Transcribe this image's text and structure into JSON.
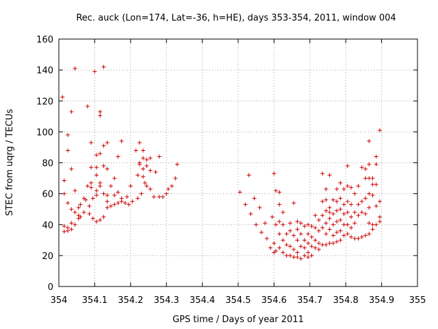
{
  "chart_data": {
    "type": "scatter",
    "title": "Rec. auck (Lon=174, Lat=-36, h=HE), days 353-354, 2011, window 004",
    "xlabel": "GPS time / Days of year 2011",
    "ylabel": "STEC from uqrg / TECUs",
    "xlim": [
      354,
      355
    ],
    "ylim": [
      0,
      160
    ],
    "xticks": [
      354,
      354.1,
      354.2,
      354.3,
      354.4,
      354.5,
      354.6,
      354.7,
      354.8,
      354.9,
      355
    ],
    "xtick_labels": [
      "354",
      "354.1",
      "354.2",
      "354.3",
      "354.4",
      "354.5",
      "354.6",
      "354.7",
      "354.8",
      "354.9",
      "355"
    ],
    "yticks": [
      0,
      20,
      40,
      60,
      80,
      100,
      120,
      140,
      160
    ],
    "ytick_labels": [
      "0",
      "20",
      "40",
      "60",
      "80",
      "100",
      "120",
      "140",
      "160"
    ],
    "grid": true,
    "marker": "plus",
    "color": "#cc0000",
    "points": [
      [
        354.01,
        122.5
      ],
      [
        354.015,
        68.5
      ],
      [
        354.015,
        60
      ],
      [
        354.015,
        39
      ],
      [
        354.015,
        35.5
      ],
      [
        354.025,
        98
      ],
      [
        354.025,
        88
      ],
      [
        354.025,
        54
      ],
      [
        354.025,
        38
      ],
      [
        354.025,
        36
      ],
      [
        354.035,
        113
      ],
      [
        354.035,
        76
      ],
      [
        354.035,
        50
      ],
      [
        354.035,
        41
      ],
      [
        354.035,
        37
      ],
      [
        354.045,
        141
      ],
      [
        354.045,
        62
      ],
      [
        354.045,
        48
      ],
      [
        354.045,
        40
      ],
      [
        354.055,
        51
      ],
      [
        354.055,
        46
      ],
      [
        354.055,
        44
      ],
      [
        354.06,
        53
      ],
      [
        354.06,
        45
      ],
      [
        354.07,
        57
      ],
      [
        354.07,
        48
      ],
      [
        354.075,
        56
      ],
      [
        354.08,
        116.5
      ],
      [
        354.08,
        65
      ],
      [
        354.085,
        52
      ],
      [
        354.085,
        47
      ],
      [
        354.09,
        93
      ],
      [
        354.09,
        77
      ],
      [
        354.09,
        67
      ],
      [
        354.09,
        64
      ],
      [
        354.095,
        44
      ],
      [
        354.095,
        57
      ],
      [
        354.1,
        139
      ],
      [
        354.105,
        85
      ],
      [
        354.105,
        77
      ],
      [
        354.105,
        72
      ],
      [
        354.105,
        62
      ],
      [
        354.105,
        59
      ],
      [
        354.105,
        42
      ],
      [
        354.115,
        113
      ],
      [
        354.115,
        110.5
      ],
      [
        354.115,
        86
      ],
      [
        354.115,
        67
      ],
      [
        354.115,
        65
      ],
      [
        354.115,
        43
      ],
      [
        354.125,
        142
      ],
      [
        354.125,
        91
      ],
      [
        354.125,
        78
      ],
      [
        354.125,
        60
      ],
      [
        354.125,
        45
      ],
      [
        354.135,
        93
      ],
      [
        354.135,
        76
      ],
      [
        354.135,
        59
      ],
      [
        354.135,
        55
      ],
      [
        354.135,
        51
      ],
      [
        354.145,
        65
      ],
      [
        354.145,
        52
      ],
      [
        354.155,
        70
      ],
      [
        354.155,
        59
      ],
      [
        354.155,
        53
      ],
      [
        354.165,
        84
      ],
      [
        354.165,
        61
      ],
      [
        354.165,
        54
      ],
      [
        354.175,
        94
      ],
      [
        354.175,
        57
      ],
      [
        354.175,
        55
      ],
      [
        354.185,
        54
      ],
      [
        354.19,
        58
      ],
      [
        354.195,
        53
      ],
      [
        354.2,
        65
      ],
      [
        354.205,
        55
      ],
      [
        354.215,
        88
      ],
      [
        354.22,
        72
      ],
      [
        354.22,
        57
      ],
      [
        354.225,
        93
      ],
      [
        354.225,
        80
      ],
      [
        354.225,
        79
      ],
      [
        354.23,
        60
      ],
      [
        354.235,
        88
      ],
      [
        354.235,
        83
      ],
      [
        354.235,
        76
      ],
      [
        354.235,
        71
      ],
      [
        354.24,
        67
      ],
      [
        354.245,
        82
      ],
      [
        354.245,
        78
      ],
      [
        354.245,
        65
      ],
      [
        354.255,
        83
      ],
      [
        354.255,
        75
      ],
      [
        354.255,
        63
      ],
      [
        354.265,
        58
      ],
      [
        354.27,
        74
      ],
      [
        354.28,
        84
      ],
      [
        354.28,
        58
      ],
      [
        354.29,
        58
      ],
      [
        354.3,
        60
      ],
      [
        354.305,
        63
      ],
      [
        354.315,
        65
      ],
      [
        354.325,
        70
      ],
      [
        354.33,
        79
      ],
      [
        354.505,
        61
      ],
      [
        354.52,
        53
      ],
      [
        354.53,
        72
      ],
      [
        354.535,
        47
      ],
      [
        354.545,
        57
      ],
      [
        354.55,
        40
      ],
      [
        354.56,
        51
      ],
      [
        354.565,
        35
      ],
      [
        354.575,
        41
      ],
      [
        354.58,
        31
      ],
      [
        354.59,
        25
      ],
      [
        354.595,
        45
      ],
      [
        354.6,
        73
      ],
      [
        354.6,
        28
      ],
      [
        354.6,
        22
      ],
      [
        354.605,
        62
      ],
      [
        354.605,
        40
      ],
      [
        354.605,
        23
      ],
      [
        354.615,
        61
      ],
      [
        354.615,
        53
      ],
      [
        354.615,
        42
      ],
      [
        354.615,
        34
      ],
      [
        354.615,
        25
      ],
      [
        354.625,
        48
      ],
      [
        354.625,
        40
      ],
      [
        354.625,
        30
      ],
      [
        354.625,
        22
      ],
      [
        354.635,
        34
      ],
      [
        354.635,
        27
      ],
      [
        354.635,
        20
      ],
      [
        354.645,
        41
      ],
      [
        354.645,
        36
      ],
      [
        354.645,
        26
      ],
      [
        354.645,
        20
      ],
      [
        354.655,
        54
      ],
      [
        354.655,
        33
      ],
      [
        354.655,
        24
      ],
      [
        354.655,
        19
      ],
      [
        354.665,
        42
      ],
      [
        354.665,
        37
      ],
      [
        354.665,
        30
      ],
      [
        354.665,
        22
      ],
      [
        354.665,
        19
      ],
      [
        354.675,
        41
      ],
      [
        354.675,
        34
      ],
      [
        354.675,
        26
      ],
      [
        354.675,
        18
      ],
      [
        354.685,
        39
      ],
      [
        354.685,
        30
      ],
      [
        354.685,
        25
      ],
      [
        354.685,
        20
      ],
      [
        354.695,
        40
      ],
      [
        354.695,
        34
      ],
      [
        354.695,
        28
      ],
      [
        354.695,
        22
      ],
      [
        354.695,
        19
      ],
      [
        354.705,
        39
      ],
      [
        354.705,
        32
      ],
      [
        354.705,
        26
      ],
      [
        354.705,
        20
      ],
      [
        354.715,
        46
      ],
      [
        354.715,
        38
      ],
      [
        354.715,
        30
      ],
      [
        354.715,
        25
      ],
      [
        354.725,
        43
      ],
      [
        354.725,
        36
      ],
      [
        354.725,
        28
      ],
      [
        354.725,
        24
      ],
      [
        354.735,
        73
      ],
      [
        354.735,
        55
      ],
      [
        354.735,
        46
      ],
      [
        354.735,
        38
      ],
      [
        354.735,
        27
      ],
      [
        354.745,
        63
      ],
      [
        354.745,
        56
      ],
      [
        354.745,
        49
      ],
      [
        354.745,
        41
      ],
      [
        354.745,
        34
      ],
      [
        354.745,
        27
      ],
      [
        354.755,
        72
      ],
      [
        354.755,
        51
      ],
      [
        354.755,
        48
      ],
      [
        354.755,
        44
      ],
      [
        354.755,
        37
      ],
      [
        354.755,
        28
      ],
      [
        354.765,
        56
      ],
      [
        354.765,
        47
      ],
      [
        354.765,
        40
      ],
      [
        354.765,
        33
      ],
      [
        354.765,
        28
      ],
      [
        354.775,
        63
      ],
      [
        354.775,
        55
      ],
      [
        354.775,
        49
      ],
      [
        354.775,
        42
      ],
      [
        354.775,
        35
      ],
      [
        354.775,
        29
      ],
      [
        354.785,
        67
      ],
      [
        354.785,
        57
      ],
      [
        354.785,
        50
      ],
      [
        354.785,
        43
      ],
      [
        354.785,
        36
      ],
      [
        354.785,
        30
      ],
      [
        354.795,
        63
      ],
      [
        354.795,
        53
      ],
      [
        354.795,
        47
      ],
      [
        354.795,
        40
      ],
      [
        354.795,
        33
      ],
      [
        354.805,
        78
      ],
      [
        354.805,
        65
      ],
      [
        354.805,
        55
      ],
      [
        354.805,
        48
      ],
      [
        354.805,
        40
      ],
      [
        354.805,
        34
      ],
      [
        354.815,
        64
      ],
      [
        354.815,
        53
      ],
      [
        354.815,
        45
      ],
      [
        354.815,
        38
      ],
      [
        354.815,
        32
      ],
      [
        354.825,
        60
      ],
      [
        354.825,
        48
      ],
      [
        354.825,
        41
      ],
      [
        354.825,
        31
      ],
      [
        354.835,
        65
      ],
      [
        354.835,
        53
      ],
      [
        354.835,
        46
      ],
      [
        354.835,
        31
      ],
      [
        354.845,
        77
      ],
      [
        354.845,
        55
      ],
      [
        354.845,
        48
      ],
      [
        354.845,
        32
      ],
      [
        354.855,
        76
      ],
      [
        354.855,
        70
      ],
      [
        354.855,
        57
      ],
      [
        354.855,
        47
      ],
      [
        354.855,
        33
      ],
      [
        354.865,
        94
      ],
      [
        354.865,
        79
      ],
      [
        354.865,
        70
      ],
      [
        354.865,
        60
      ],
      [
        354.865,
        51
      ],
      [
        354.865,
        41
      ],
      [
        354.865,
        34
      ],
      [
        354.875,
        70
      ],
      [
        354.875,
        66
      ],
      [
        354.875,
        59
      ],
      [
        354.875,
        40
      ],
      [
        354.875,
        37
      ],
      [
        354.885,
        84
      ],
      [
        354.885,
        79
      ],
      [
        354.885,
        66
      ],
      [
        354.885,
        52
      ],
      [
        354.885,
        40
      ],
      [
        354.895,
        101
      ],
      [
        354.895,
        55
      ],
      [
        354.895,
        45
      ],
      [
        354.895,
        42
      ]
    ]
  }
}
